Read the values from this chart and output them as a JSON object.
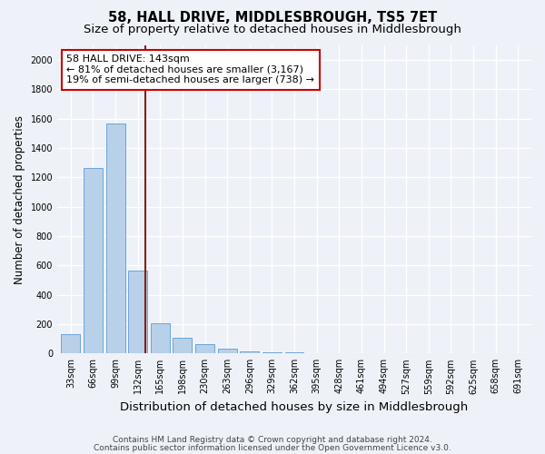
{
  "title": "58, HALL DRIVE, MIDDLESBROUGH, TS5 7ET",
  "subtitle": "Size of property relative to detached houses in Middlesbrough",
  "xlabel": "Distribution of detached houses by size in Middlesbrough",
  "ylabel": "Number of detached properties",
  "categories": [
    "33sqm",
    "66sqm",
    "99sqm",
    "132sqm",
    "165sqm",
    "198sqm",
    "230sqm",
    "263sqm",
    "296sqm",
    "329sqm",
    "362sqm",
    "395sqm",
    "428sqm",
    "461sqm",
    "494sqm",
    "527sqm",
    "559sqm",
    "592sqm",
    "625sqm",
    "658sqm",
    "691sqm"
  ],
  "values": [
    130,
    1265,
    1570,
    565,
    205,
    110,
    65,
    35,
    15,
    8,
    5,
    3,
    2,
    1,
    1,
    0,
    0,
    0,
    0,
    0,
    0
  ],
  "bar_color": "#b8d0e8",
  "bar_edge_color": "#5b9bd5",
  "vline_color": "#8b1a1a",
  "vline_position": 3.32,
  "annotation_text": "58 HALL DRIVE: 143sqm\n← 81% of detached houses are smaller (3,167)\n19% of semi-detached houses are larger (738) →",
  "ylim": [
    0,
    2100
  ],
  "yticks": [
    0,
    200,
    400,
    600,
    800,
    1000,
    1200,
    1400,
    1600,
    1800,
    2000
  ],
  "footnote1": "Contains HM Land Registry data © Crown copyright and database right 2024.",
  "footnote2": "Contains public sector information licensed under the Open Government Licence v3.0.",
  "background_color": "#eef2f8",
  "title_fontsize": 10.5,
  "subtitle_fontsize": 9.5,
  "xlabel_fontsize": 9.5,
  "ylabel_fontsize": 8.5,
  "annotation_fontsize": 8,
  "tick_fontsize": 7,
  "footnote_fontsize": 6.5
}
